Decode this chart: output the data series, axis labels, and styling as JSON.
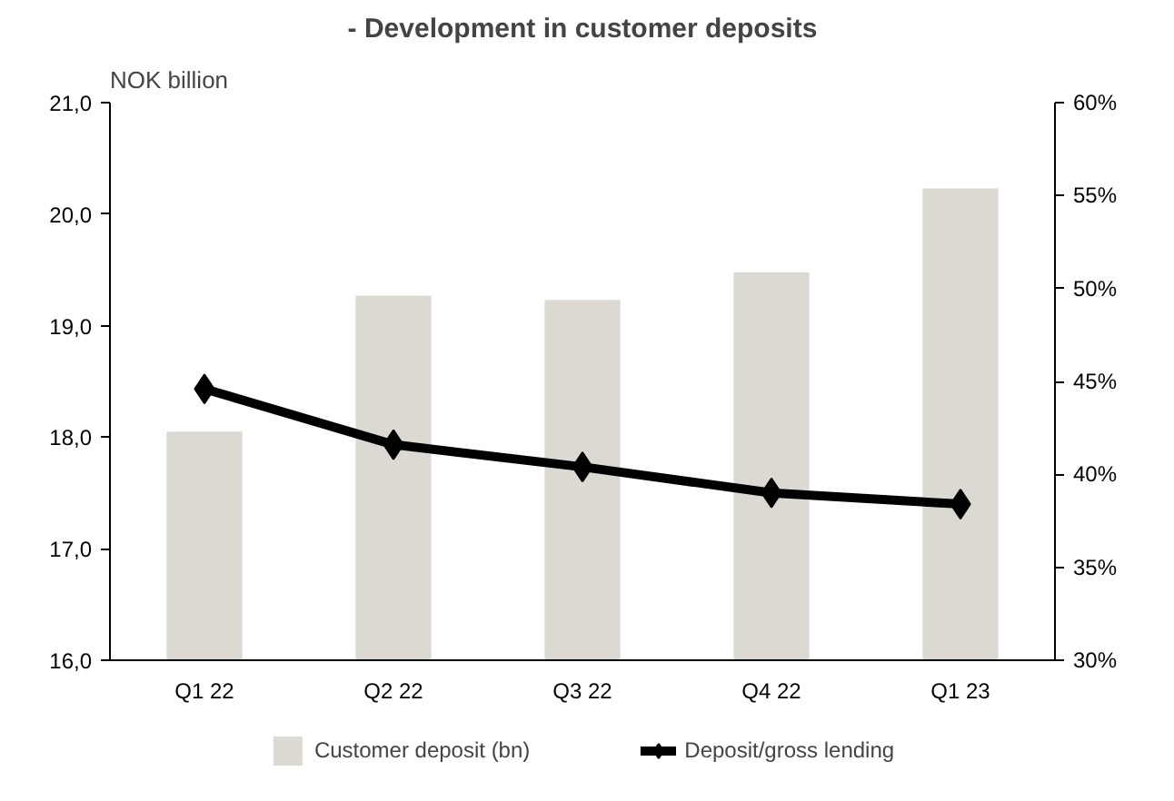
{
  "chart_data": {
    "type": "bar",
    "title": "- Development in customer deposits",
    "ylabel": "NOK billion",
    "categories": [
      "Q1 22",
      "Q2 22",
      "Q3 22",
      "Q4 22",
      "Q1 23"
    ],
    "series": [
      {
        "name": "Customer deposit (bn)",
        "color": "#dcd9d3",
        "values": [
          18.05,
          19.27,
          19.23,
          19.48,
          20.23
        ]
      },
      {
        "name": "Deposit/gross lending",
        "type": "line",
        "axis": "y2",
        "color": "#000000",
        "marker": "diamond",
        "values": [
          44.6,
          41.6,
          40.4,
          39.0,
          38.4
        ]
      }
    ],
    "ylim": [
      16,
      21
    ],
    "yticks": [
      {
        "value": 16,
        "label": "16,0"
      },
      {
        "value": 17,
        "label": "17,0"
      },
      {
        "value": 18,
        "label": "18,0"
      },
      {
        "value": 19,
        "label": "19,0"
      },
      {
        "value": 20,
        "label": "20,0"
      },
      {
        "value": 21,
        "label": "21,0"
      }
    ],
    "y2lim": [
      30,
      60
    ],
    "y2ticks": [
      {
        "value": 30,
        "label": "30%"
      },
      {
        "value": 35,
        "label": "35%"
      },
      {
        "value": 40,
        "label": "40%"
      },
      {
        "value": 45,
        "label": "45%"
      },
      {
        "value": 50,
        "label": "50%"
      },
      {
        "value": 55,
        "label": "55%"
      },
      {
        "value": 60,
        "label": "60%"
      }
    ],
    "grid": false,
    "legend": "bottom"
  }
}
